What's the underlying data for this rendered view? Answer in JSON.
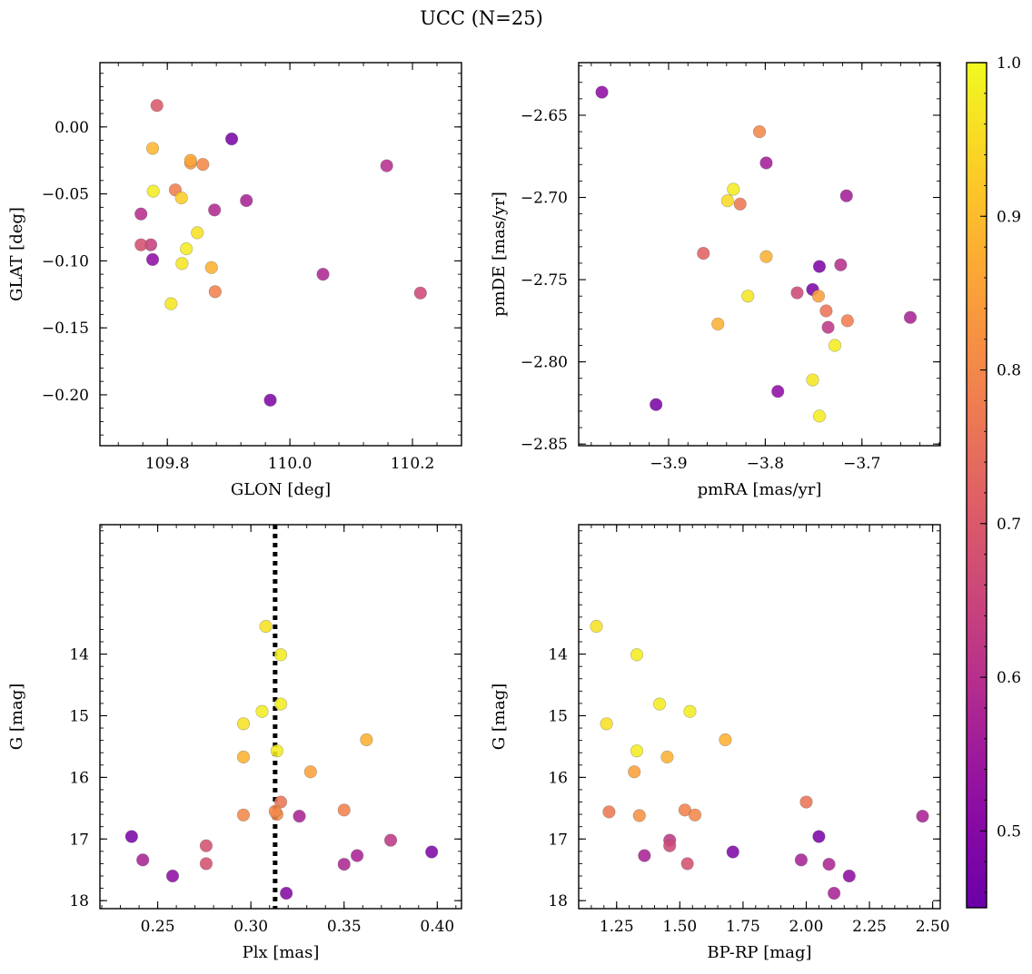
{
  "figure": {
    "title": "UCC (N=25)"
  },
  "colorbar": {
    "min": 0.45,
    "max": 1.0,
    "ticks": [
      0.5,
      0.6,
      0.7,
      0.8,
      0.9,
      1.0
    ],
    "tick_labels": [
      "0.5",
      "0.6",
      "0.7",
      "0.8",
      "0.9",
      "1.0"
    ],
    "colormap": "plasma"
  },
  "chart_data": [
    {
      "id": "glon_glat",
      "type": "scatter",
      "xlabel": "GLON [deg]",
      "ylabel": "GLAT [deg]",
      "xlim": [
        109.69,
        110.28
      ],
      "ylim": [
        -0.238,
        0.048
      ],
      "y_inverted": false,
      "xticks": [
        109.8,
        110.0,
        110.2
      ],
      "xtick_labels": [
        "109.8",
        "110.0",
        "110.2"
      ],
      "yticks": [
        0.0,
        -0.05,
        -0.1,
        -0.15,
        -0.2
      ],
      "ytick_labels": [
        "0.00",
        "−0.05",
        "−0.10",
        "−0.15",
        "−0.20"
      ],
      "x": [
        109.968,
        109.776,
        110.054,
        109.757,
        109.773,
        109.877,
        109.929,
        109.905,
        110.158,
        109.757,
        110.213,
        109.783,
        109.813,
        109.858,
        109.878,
        109.838,
        109.838,
        109.872,
        109.776,
        109.823,
        109.824,
        109.806,
        109.849,
        109.831,
        109.777
      ],
      "y": [
        -0.204,
        -0.099,
        -0.11,
        -0.065,
        -0.088,
        -0.062,
        -0.055,
        -0.009,
        -0.029,
        -0.088,
        -0.124,
        0.016,
        -0.047,
        -0.028,
        -0.123,
        -0.027,
        -0.025,
        -0.105,
        -0.016,
        -0.053,
        -0.102,
        -0.132,
        -0.079,
        -0.091,
        -0.048
      ],
      "c": [
        0.49,
        0.52,
        0.58,
        0.6,
        0.64,
        0.59,
        0.57,
        0.48,
        0.6,
        0.68,
        0.66,
        0.7,
        0.78,
        0.8,
        0.79,
        0.83,
        0.86,
        0.88,
        0.89,
        0.93,
        0.97,
        0.97,
        0.96,
        0.98,
        0.98
      ]
    },
    {
      "id": "pm",
      "type": "scatter",
      "xlabel": "pmRA [mas/yr]",
      "ylabel": "pmDE [mas/yr]",
      "xlim": [
        -3.993,
        -3.619
      ],
      "ylim": [
        -2.851,
        -2.618
      ],
      "y_inverted": false,
      "xticks": [
        -3.9,
        -3.8,
        -3.7
      ],
      "xtick_labels": [
        "−3.9",
        "−3.8",
        "−3.7"
      ],
      "yticks": [
        -2.65,
        -2.7,
        -2.75,
        -2.8,
        -2.85
      ],
      "ytick_labels": [
        "−2.65",
        "−2.70",
        "−2.75",
        "−2.80",
        "−2.85"
      ],
      "x": [
        -3.969,
        -3.913,
        -3.787,
        -3.751,
        -3.744,
        -3.799,
        -3.716,
        -3.722,
        -3.65,
        -3.735,
        -3.767,
        -3.864,
        -3.826,
        -3.806,
        -3.715,
        -3.737,
        -3.745,
        -3.799,
        -3.849,
        -3.751,
        -3.744,
        -3.818,
        -3.833,
        -3.839,
        -3.728
      ],
      "y": [
        -2.636,
        -2.826,
        -2.818,
        -2.756,
        -2.742,
        -2.679,
        -2.699,
        -2.741,
        -2.773,
        -2.779,
        -2.758,
        -2.734,
        -2.704,
        -2.66,
        -2.775,
        -2.769,
        -2.76,
        -2.736,
        -2.777,
        -2.811,
        -2.833,
        -2.76,
        -2.695,
        -2.702,
        -2.79
      ],
      "c": [
        0.52,
        0.48,
        0.52,
        0.48,
        0.49,
        0.56,
        0.56,
        0.6,
        0.57,
        0.62,
        0.66,
        0.72,
        0.77,
        0.8,
        0.78,
        0.76,
        0.85,
        0.88,
        0.88,
        0.97,
        0.98,
        0.97,
        0.98,
        0.95,
        0.98
      ]
    },
    {
      "id": "plx_g",
      "type": "scatter",
      "xlabel": "Plx [mas]",
      "ylabel": "G [mag]",
      "xlim": [
        0.219,
        0.413
      ],
      "ylim": [
        18.13,
        11.9
      ],
      "y_inverted": true,
      "xticks": [
        0.25,
        0.3,
        0.35,
        0.4
      ],
      "xtick_labels": [
        "0.25",
        "0.30",
        "0.35",
        "0.40"
      ],
      "yticks": [
        14,
        15,
        16,
        17,
        18
      ],
      "ytick_labels": [
        "14",
        "15",
        "16",
        "17",
        "18"
      ],
      "vline_x": 0.313,
      "x": [
        0.236,
        0.242,
        0.258,
        0.276,
        0.276,
        0.319,
        0.326,
        0.35,
        0.357,
        0.375,
        0.397,
        0.316,
        0.35,
        0.296,
        0.314,
        0.313,
        0.332,
        0.362,
        0.296,
        0.308,
        0.316,
        0.296,
        0.306,
        0.314,
        0.316
      ],
      "y": [
        16.96,
        17.34,
        17.6,
        17.11,
        17.4,
        17.88,
        16.63,
        17.41,
        17.27,
        17.02,
        17.21,
        16.4,
        16.53,
        16.61,
        16.6,
        16.55,
        15.91,
        15.39,
        15.67,
        13.55,
        14.01,
        15.13,
        14.93,
        15.57,
        14.81
      ],
      "c": [
        0.48,
        0.57,
        0.52,
        0.68,
        0.68,
        0.5,
        0.57,
        0.58,
        0.57,
        0.62,
        0.49,
        0.76,
        0.79,
        0.8,
        0.81,
        0.8,
        0.85,
        0.88,
        0.88,
        0.96,
        0.98,
        0.96,
        0.98,
        0.98,
        0.98
      ]
    },
    {
      "id": "bprp_g",
      "type": "scatter",
      "xlabel": "BP-RP [mag]",
      "ylabel": "G [mag]",
      "xlim": [
        1.1,
        2.53
      ],
      "ylim": [
        18.13,
        11.9
      ],
      "y_inverted": true,
      "xticks": [
        1.25,
        1.5,
        1.75,
        2.0,
        2.25,
        2.5
      ],
      "xtick_labels": [
        "1.25",
        "1.50",
        "1.75",
        "2.00",
        "2.25",
        "2.50"
      ],
      "yticks": [
        14,
        15,
        16,
        17,
        18
      ],
      "ytick_labels": [
        "14",
        "15",
        "16",
        "17",
        "18"
      ],
      "x": [
        2.05,
        2.17,
        2.11,
        1.71,
        1.36,
        1.98,
        2.09,
        2.46,
        1.46,
        1.46,
        1.53,
        2.0,
        1.52,
        1.56,
        1.22,
        1.34,
        1.32,
        1.68,
        1.45,
        1.17,
        1.33,
        1.21,
        1.42,
        1.54,
        1.33
      ],
      "y": [
        16.96,
        17.6,
        17.88,
        17.21,
        17.27,
        17.34,
        17.41,
        16.63,
        17.02,
        17.11,
        17.4,
        16.4,
        16.53,
        16.61,
        16.56,
        16.62,
        15.91,
        15.39,
        15.67,
        13.55,
        14.01,
        15.13,
        14.81,
        14.93,
        15.57
      ],
      "c": [
        0.48,
        0.52,
        0.57,
        0.49,
        0.57,
        0.57,
        0.58,
        0.57,
        0.62,
        0.66,
        0.68,
        0.76,
        0.79,
        0.8,
        0.77,
        0.82,
        0.85,
        0.88,
        0.88,
        0.96,
        0.98,
        0.96,
        0.98,
        0.98,
        0.98
      ]
    }
  ]
}
